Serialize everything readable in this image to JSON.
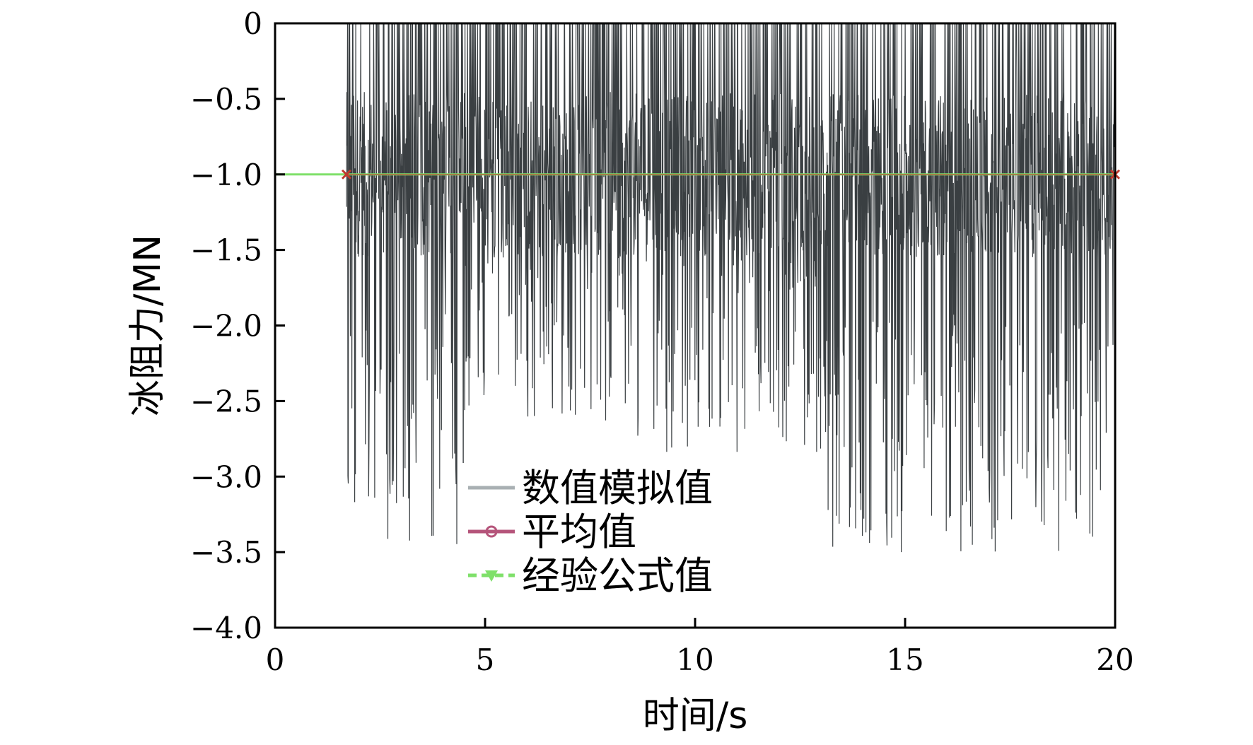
{
  "chart_data": {
    "type": "line",
    "xlabel": "时间/s",
    "ylabel": "冰阻力/MN",
    "xlim": [
      0,
      20
    ],
    "ylim": [
      -4.0,
      0
    ],
    "x_ticks": [
      0,
      5,
      10,
      15,
      20
    ],
    "x_tick_labels": [
      "0",
      "5",
      "10",
      "15",
      "20"
    ],
    "y_ticks": [
      0,
      -0.5,
      -1.0,
      -1.5,
      -2.0,
      -2.5,
      -3.0,
      -3.5,
      -4.0
    ],
    "y_tick_labels": [
      "0",
      "−0.5",
      "−1.0",
      "−1.5",
      "−2.0",
      "−2.5",
      "−3.0",
      "−3.5",
      "−4.0"
    ],
    "grid": false,
    "legend_position": "bottom-center",
    "series": [
      {
        "name": "数值模拟值",
        "color": "#3a3f42",
        "legend_color": "#a9b0b3",
        "style": "solid",
        "x_range": [
          1.7,
          20
        ],
        "approx_range": [
          -3.5,
          0
        ],
        "sample_segments": [
          {
            "x": [
              1.7,
              4.5
            ],
            "min": -3.45,
            "max": 0
          },
          {
            "x": [
              4.5,
              8.5
            ],
            "min": -2.65,
            "max": 0
          },
          {
            "x": [
              8.5,
              13.0
            ],
            "min": -2.85,
            "max": 0
          },
          {
            "x": [
              13.0,
              20.0
            ],
            "min": -3.5,
            "max": 0
          }
        ]
      },
      {
        "name": "平均值",
        "color": "#c0392b",
        "legend_color": "#b5547a",
        "marker": "circle",
        "x": [
          1.7,
          20
        ],
        "y": [
          -1.0,
          -1.0
        ]
      },
      {
        "name": "经验公式值",
        "color": "#7fe06a",
        "style": "dashed",
        "marker": "triangle-down",
        "x": [
          0,
          20
        ],
        "y": [
          -1.0,
          -1.0
        ]
      }
    ]
  }
}
